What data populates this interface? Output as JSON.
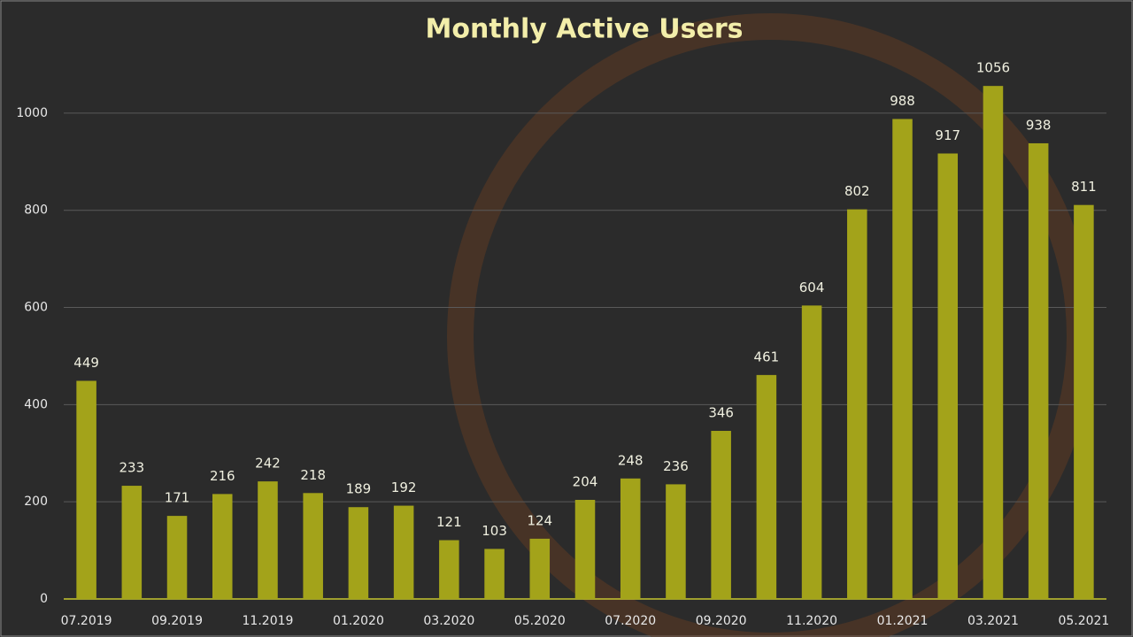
{
  "chart_data": {
    "type": "bar",
    "title": "Monthly Active Users",
    "categories": [
      "07.2019",
      null,
      "09.2019",
      null,
      "11.2019",
      null,
      "01.2020",
      null,
      "03.2020",
      null,
      "05.2020",
      null,
      "07.2020",
      null,
      "09.2020",
      null,
      "11.2020",
      null,
      "01.2021",
      null,
      "03.2021",
      null,
      "05.2021"
    ],
    "values": [
      449,
      233,
      171,
      216,
      242,
      218,
      189,
      192,
      121,
      103,
      124,
      204,
      248,
      236,
      346,
      461,
      604,
      802,
      988,
      917,
      1056,
      938,
      811
    ],
    "color": "#a3a31a",
    "ylim": [
      0,
      1100
    ],
    "yticks": [
      0,
      200,
      400,
      600,
      800,
      1000
    ],
    "grid": true
  }
}
